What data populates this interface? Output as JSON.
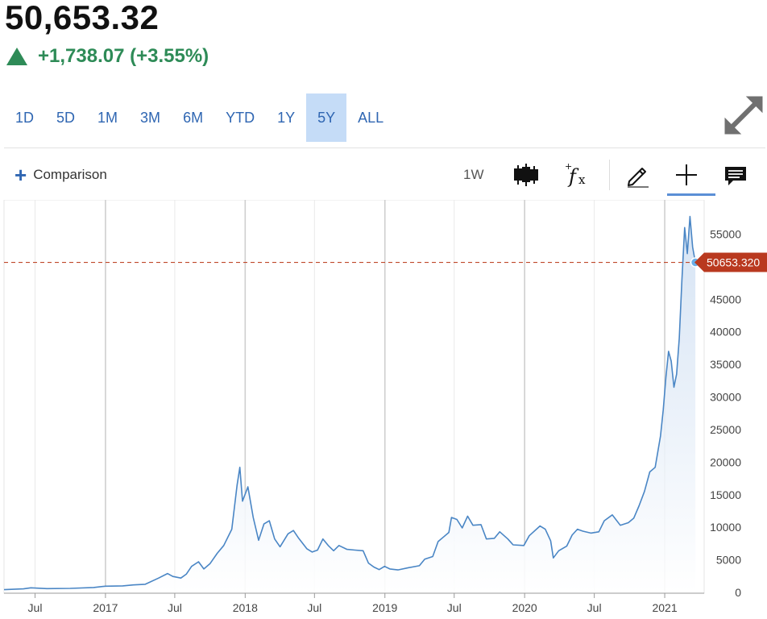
{
  "quote": {
    "price": "50,653.32",
    "change": "+1,738.07 (+3.55%)",
    "direction": "up",
    "up_color": "#2e8b57"
  },
  "ranges": [
    {
      "label": "1D",
      "active": false
    },
    {
      "label": "5D",
      "active": false
    },
    {
      "label": "1M",
      "active": false
    },
    {
      "label": "3M",
      "active": false
    },
    {
      "label": "6M",
      "active": false
    },
    {
      "label": "YTD",
      "active": false
    },
    {
      "label": "1Y",
      "active": false
    },
    {
      "label": "5Y",
      "active": true
    },
    {
      "label": "ALL",
      "active": false
    }
  ],
  "toolbar": {
    "comparison_label": "Comparison",
    "interval_label": "1W",
    "icons": [
      "candlestick-icon",
      "function-fx-icon",
      "pencil-draw-icon",
      "crosshair-icon",
      "comment-icon"
    ]
  },
  "colors": {
    "line": "#4a86c5",
    "area_top": "#cfdff2",
    "last_price_line": "#c0482b",
    "last_price_tag": "#b9391f",
    "accent": "#2f66b2",
    "active_range_bg": "#c5dcf7"
  },
  "chart_data": {
    "type": "area",
    "last_price": 50653.32,
    "last_price_label": "50653.320",
    "ylim": [
      0,
      60000
    ],
    "y_ticks": [
      0,
      5000,
      10000,
      15000,
      20000,
      25000,
      30000,
      35000,
      40000,
      45000,
      50000,
      55000
    ],
    "y_tick_labels": [
      "0",
      "5000",
      "10000",
      "15000",
      "20000",
      "25000",
      "30000",
      "35000",
      "40000",
      "45000",
      "",
      "55000"
    ],
    "xlim": [
      "2016-04-11",
      "2021-04-14"
    ],
    "x_ticks": [
      {
        "date": "2016-07-01",
        "label": "Jul"
      },
      {
        "date": "2017-01-01",
        "label": "2017"
      },
      {
        "date": "2017-07-01",
        "label": "Jul"
      },
      {
        "date": "2018-01-01",
        "label": "2018"
      },
      {
        "date": "2018-07-01",
        "label": "Jul"
      },
      {
        "date": "2019-01-01",
        "label": "2019"
      },
      {
        "date": "2019-07-01",
        "label": "Jul"
      },
      {
        "date": "2020-01-01",
        "label": "2020"
      },
      {
        "date": "2020-07-01",
        "label": "Jul"
      },
      {
        "date": "2021-01-01",
        "label": "2021"
      }
    ],
    "grid": {
      "year_lines": true,
      "month_lines": true
    },
    "series": [
      {
        "points": [
          [
            "2016-04-11",
            420
          ],
          [
            "2016-06-01",
            550
          ],
          [
            "2016-06-20",
            700
          ],
          [
            "2016-08-01",
            580
          ],
          [
            "2016-10-01",
            620
          ],
          [
            "2016-12-01",
            750
          ],
          [
            "2017-01-01",
            950
          ],
          [
            "2017-02-15",
            1000
          ],
          [
            "2017-03-15",
            1150
          ],
          [
            "2017-04-15",
            1250
          ],
          [
            "2017-05-20",
            2200
          ],
          [
            "2017-06-12",
            2900
          ],
          [
            "2017-06-26",
            2450
          ],
          [
            "2017-07-17",
            2200
          ],
          [
            "2017-07-31",
            2800
          ],
          [
            "2017-08-14",
            4000
          ],
          [
            "2017-09-01",
            4700
          ],
          [
            "2017-09-15",
            3600
          ],
          [
            "2017-10-01",
            4400
          ],
          [
            "2017-10-20",
            6000
          ],
          [
            "2017-11-06",
            7200
          ],
          [
            "2017-11-27",
            9700
          ],
          [
            "2017-12-11",
            16500
          ],
          [
            "2017-12-18",
            19200
          ],
          [
            "2017-12-25",
            14000
          ],
          [
            "2018-01-08",
            16200
          ],
          [
            "2018-01-22",
            11500
          ],
          [
            "2018-02-05",
            8000
          ],
          [
            "2018-02-19",
            10500
          ],
          [
            "2018-03-05",
            11000
          ],
          [
            "2018-03-19",
            8200
          ],
          [
            "2018-04-02",
            7000
          ],
          [
            "2018-04-23",
            9000
          ],
          [
            "2018-05-07",
            9500
          ],
          [
            "2018-05-21",
            8300
          ],
          [
            "2018-06-11",
            6700
          ],
          [
            "2018-06-25",
            6200
          ],
          [
            "2018-07-09",
            6500
          ],
          [
            "2018-07-23",
            8200
          ],
          [
            "2018-08-06",
            7200
          ],
          [
            "2018-08-20",
            6400
          ],
          [
            "2018-09-03",
            7200
          ],
          [
            "2018-09-24",
            6600
          ],
          [
            "2018-10-15",
            6500
          ],
          [
            "2018-11-05",
            6400
          ],
          [
            "2018-11-19",
            4500
          ],
          [
            "2018-12-03",
            3900
          ],
          [
            "2018-12-17",
            3500
          ],
          [
            "2018-12-31",
            4000
          ],
          [
            "2019-01-14",
            3600
          ],
          [
            "2019-02-04",
            3450
          ],
          [
            "2019-03-04",
            3800
          ],
          [
            "2019-04-01",
            4100
          ],
          [
            "2019-04-15",
            5100
          ],
          [
            "2019-05-06",
            5500
          ],
          [
            "2019-05-20",
            7800
          ],
          [
            "2019-06-03",
            8500
          ],
          [
            "2019-06-17",
            9200
          ],
          [
            "2019-06-24",
            11500
          ],
          [
            "2019-07-08",
            11200
          ],
          [
            "2019-07-22",
            9900
          ],
          [
            "2019-08-05",
            11700
          ],
          [
            "2019-08-19",
            10300
          ],
          [
            "2019-09-09",
            10400
          ],
          [
            "2019-09-23",
            8200
          ],
          [
            "2019-10-14",
            8300
          ],
          [
            "2019-10-28",
            9300
          ],
          [
            "2019-11-18",
            8200
          ],
          [
            "2019-12-02",
            7300
          ],
          [
            "2019-12-30",
            7200
          ],
          [
            "2020-01-13",
            8700
          ],
          [
            "2020-02-10",
            10200
          ],
          [
            "2020-02-24",
            9700
          ],
          [
            "2020-03-09",
            7900
          ],
          [
            "2020-03-16",
            5300
          ],
          [
            "2020-03-30",
            6400
          ],
          [
            "2020-04-20",
            7100
          ],
          [
            "2020-05-04",
            8800
          ],
          [
            "2020-05-18",
            9700
          ],
          [
            "2020-06-01",
            9400
          ],
          [
            "2020-06-22",
            9100
          ],
          [
            "2020-07-13",
            9300
          ],
          [
            "2020-07-27",
            11000
          ],
          [
            "2020-08-17",
            11900
          ],
          [
            "2020-09-07",
            10300
          ],
          [
            "2020-09-28",
            10700
          ],
          [
            "2020-10-12",
            11400
          ],
          [
            "2020-10-26",
            13300
          ],
          [
            "2020-11-09",
            15500
          ],
          [
            "2020-11-23",
            18500
          ],
          [
            "2020-12-07",
            19200
          ],
          [
            "2020-12-21",
            24000
          ],
          [
            "2020-12-28",
            28000
          ],
          [
            "2021-01-04",
            33000
          ],
          [
            "2021-01-11",
            37000
          ],
          [
            "2021-01-18",
            35500
          ],
          [
            "2021-01-25",
            31500
          ],
          [
            "2021-02-01",
            33500
          ],
          [
            "2021-02-08",
            39000
          ],
          [
            "2021-02-15",
            48000
          ],
          [
            "2021-02-22",
            56000
          ],
          [
            "2021-03-01",
            52000
          ],
          [
            "2021-03-08",
            57700
          ],
          [
            "2021-03-15",
            53000
          ],
          [
            "2021-03-22",
            50653.32
          ]
        ]
      }
    ]
  }
}
